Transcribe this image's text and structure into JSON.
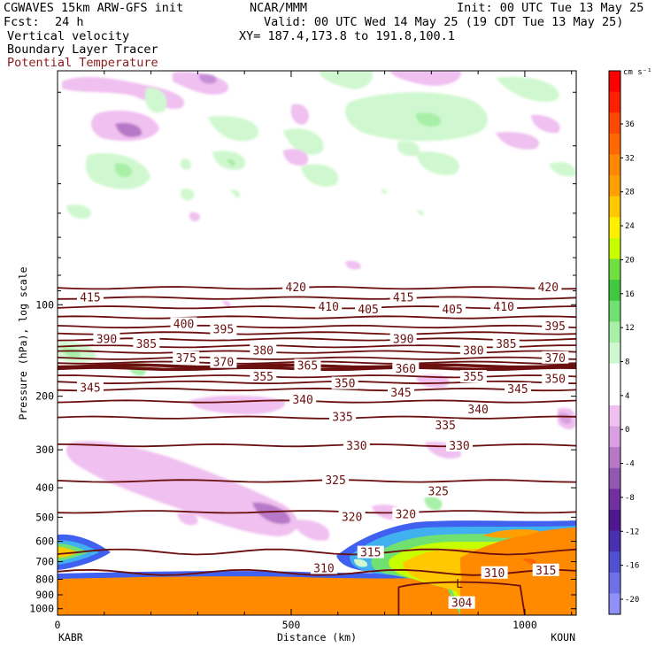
{
  "header": {
    "model": "CGWAVES 15km ARW-GFS init",
    "center": "NCAR/MMM",
    "init": "Init: 00 UTC Tue 13 May 25",
    "fcst_label": "Fcst:",
    "fcst_value": "24 h",
    "valid": "Valid: 00 UTC Wed 14 May 25 (19 CDT Tue 13 May 25)",
    "field1": "Vertical velocity",
    "field2": "Boundary Layer Tracer",
    "field3": "Potential Temperature",
    "xy": "XY= 187.4,173.8 to 191.8,100.1",
    "field3_color": "#8b1a1a"
  },
  "chart_data": {
    "type": "cross-section",
    "xlabel": "Distance (km)",
    "ylabel": "Pressure (hPa), log scale",
    "xlim": [
      0,
      1110
    ],
    "ylim": [
      1050,
      17
    ],
    "x_ticks": [
      0,
      500,
      1000
    ],
    "y_ticks": [
      100,
      200,
      300,
      400,
      500,
      600,
      700,
      800,
      900,
      1000
    ],
    "left_endpoint": "KABR",
    "right_endpoint": "KOUN",
    "theta_color": "#6b0f0f",
    "theta_levels": [
      {
        "theta": 420,
        "p": 88
      },
      {
        "theta": 415,
        "p": 95
      },
      {
        "theta": 410,
        "p": 102
      },
      {
        "theta": 405,
        "p": 110
      },
      {
        "theta": 400,
        "p": 118
      },
      {
        "theta": 395,
        "p": 124
      },
      {
        "theta": 390,
        "p": 130
      },
      {
        "theta": 385,
        "p": 137
      },
      {
        "theta": 380,
        "p": 143
      },
      {
        "theta": 375,
        "p": 150
      },
      {
        "theta": 370,
        "p": 155
      },
      {
        "theta": 365,
        "p": 159
      },
      {
        "theta": 360,
        "p": 162
      },
      {
        "theta": 355,
        "p": 172
      },
      {
        "theta": 350,
        "p": 180
      },
      {
        "theta": 345,
        "p": 190
      },
      {
        "theta": 340,
        "p": 208
      },
      {
        "theta": 335,
        "p": 235
      },
      {
        "theta": 330,
        "p": 290
      },
      {
        "theta": 325,
        "p": 380
      },
      {
        "theta": 320,
        "p": 480
      },
      {
        "theta": 315,
        "p": 650
      },
      {
        "theta": 310,
        "p": 760
      }
    ],
    "theta_labels": [
      {
        "text": "420",
        "x": 510,
        "p": 88
      },
      {
        "text": "420",
        "x": 1050,
        "p": 88
      },
      {
        "text": "415",
        "x": 70,
        "p": 95
      },
      {
        "text": "415",
        "x": 740,
        "p": 95
      },
      {
        "text": "410",
        "x": 580,
        "p": 102
      },
      {
        "text": "410",
        "x": 955,
        "p": 102
      },
      {
        "text": "405",
        "x": 665,
        "p": 104
      },
      {
        "text": "405",
        "x": 845,
        "p": 104
      },
      {
        "text": "400",
        "x": 270,
        "p": 116
      },
      {
        "text": "395",
        "x": 355,
        "p": 121
      },
      {
        "text": "395",
        "x": 1065,
        "p": 118
      },
      {
        "text": "390",
        "x": 105,
        "p": 130
      },
      {
        "text": "390",
        "x": 740,
        "p": 130
      },
      {
        "text": "385",
        "x": 190,
        "p": 135
      },
      {
        "text": "385",
        "x": 960,
        "p": 135
      },
      {
        "text": "380",
        "x": 440,
        "p": 142
      },
      {
        "text": "380",
        "x": 890,
        "p": 142
      },
      {
        "text": "375",
        "x": 275,
        "p": 150
      },
      {
        "text": "370",
        "x": 355,
        "p": 155
      },
      {
        "text": "370",
        "x": 1065,
        "p": 150
      },
      {
        "text": "365",
        "x": 535,
        "p": 159
      },
      {
        "text": "360",
        "x": 745,
        "p": 163
      },
      {
        "text": "355",
        "x": 440,
        "p": 173
      },
      {
        "text": "355",
        "x": 890,
        "p": 173
      },
      {
        "text": "350",
        "x": 615,
        "p": 182
      },
      {
        "text": "350",
        "x": 1065,
        "p": 176
      },
      {
        "text": "345",
        "x": 70,
        "p": 188
      },
      {
        "text": "345",
        "x": 735,
        "p": 195
      },
      {
        "text": "345",
        "x": 985,
        "p": 190
      },
      {
        "text": "340",
        "x": 525,
        "p": 206
      },
      {
        "text": "340",
        "x": 900,
        "p": 222
      },
      {
        "text": "335",
        "x": 610,
        "p": 235
      },
      {
        "text": "335",
        "x": 830,
        "p": 250
      },
      {
        "text": "330",
        "x": 640,
        "p": 292
      },
      {
        "text": "330",
        "x": 860,
        "p": 292
      },
      {
        "text": "325",
        "x": 595,
        "p": 379
      },
      {
        "text": "325",
        "x": 815,
        "p": 412
      },
      {
        "text": "320",
        "x": 630,
        "p": 500
      },
      {
        "text": "320",
        "x": 745,
        "p": 490
      },
      {
        "text": "315",
        "x": 670,
        "p": 655
      },
      {
        "text": "315",
        "x": 1045,
        "p": 750
      },
      {
        "text": "310",
        "x": 570,
        "p": 738
      },
      {
        "text": "310",
        "x": 935,
        "p": 765
      },
      {
        "text": "304",
        "x": 865,
        "p": 960
      }
    ],
    "low_label": {
      "text": "L",
      "x": 860,
      "p": 830
    },
    "colorbar": {
      "unit": "cm s⁻¹",
      "colors": [
        "#ff0000",
        "#ff2000",
        "#ff4800",
        "#ff6800",
        "#ff8800",
        "#ffa000",
        "#ffc800",
        "#fff000",
        "#c8ff00",
        "#70e040",
        "#40c840",
        "#70e070",
        "#a8f0a8",
        "#d0f8d0",
        "#ffffff",
        "#ffffff",
        "#f0c0f0",
        "#d8a0e0",
        "#b878c8",
        "#9058b0",
        "#7030a0",
        "#501890",
        "#4830b0",
        "#5050d0",
        "#7070e8",
        "#9090f8"
      ],
      "labels": [
        "36",
        "32",
        "28",
        "24",
        "20",
        "16",
        "12",
        "8",
        "4",
        "0",
        "-4",
        "-8",
        "-12",
        "-16",
        "-20"
      ]
    }
  }
}
